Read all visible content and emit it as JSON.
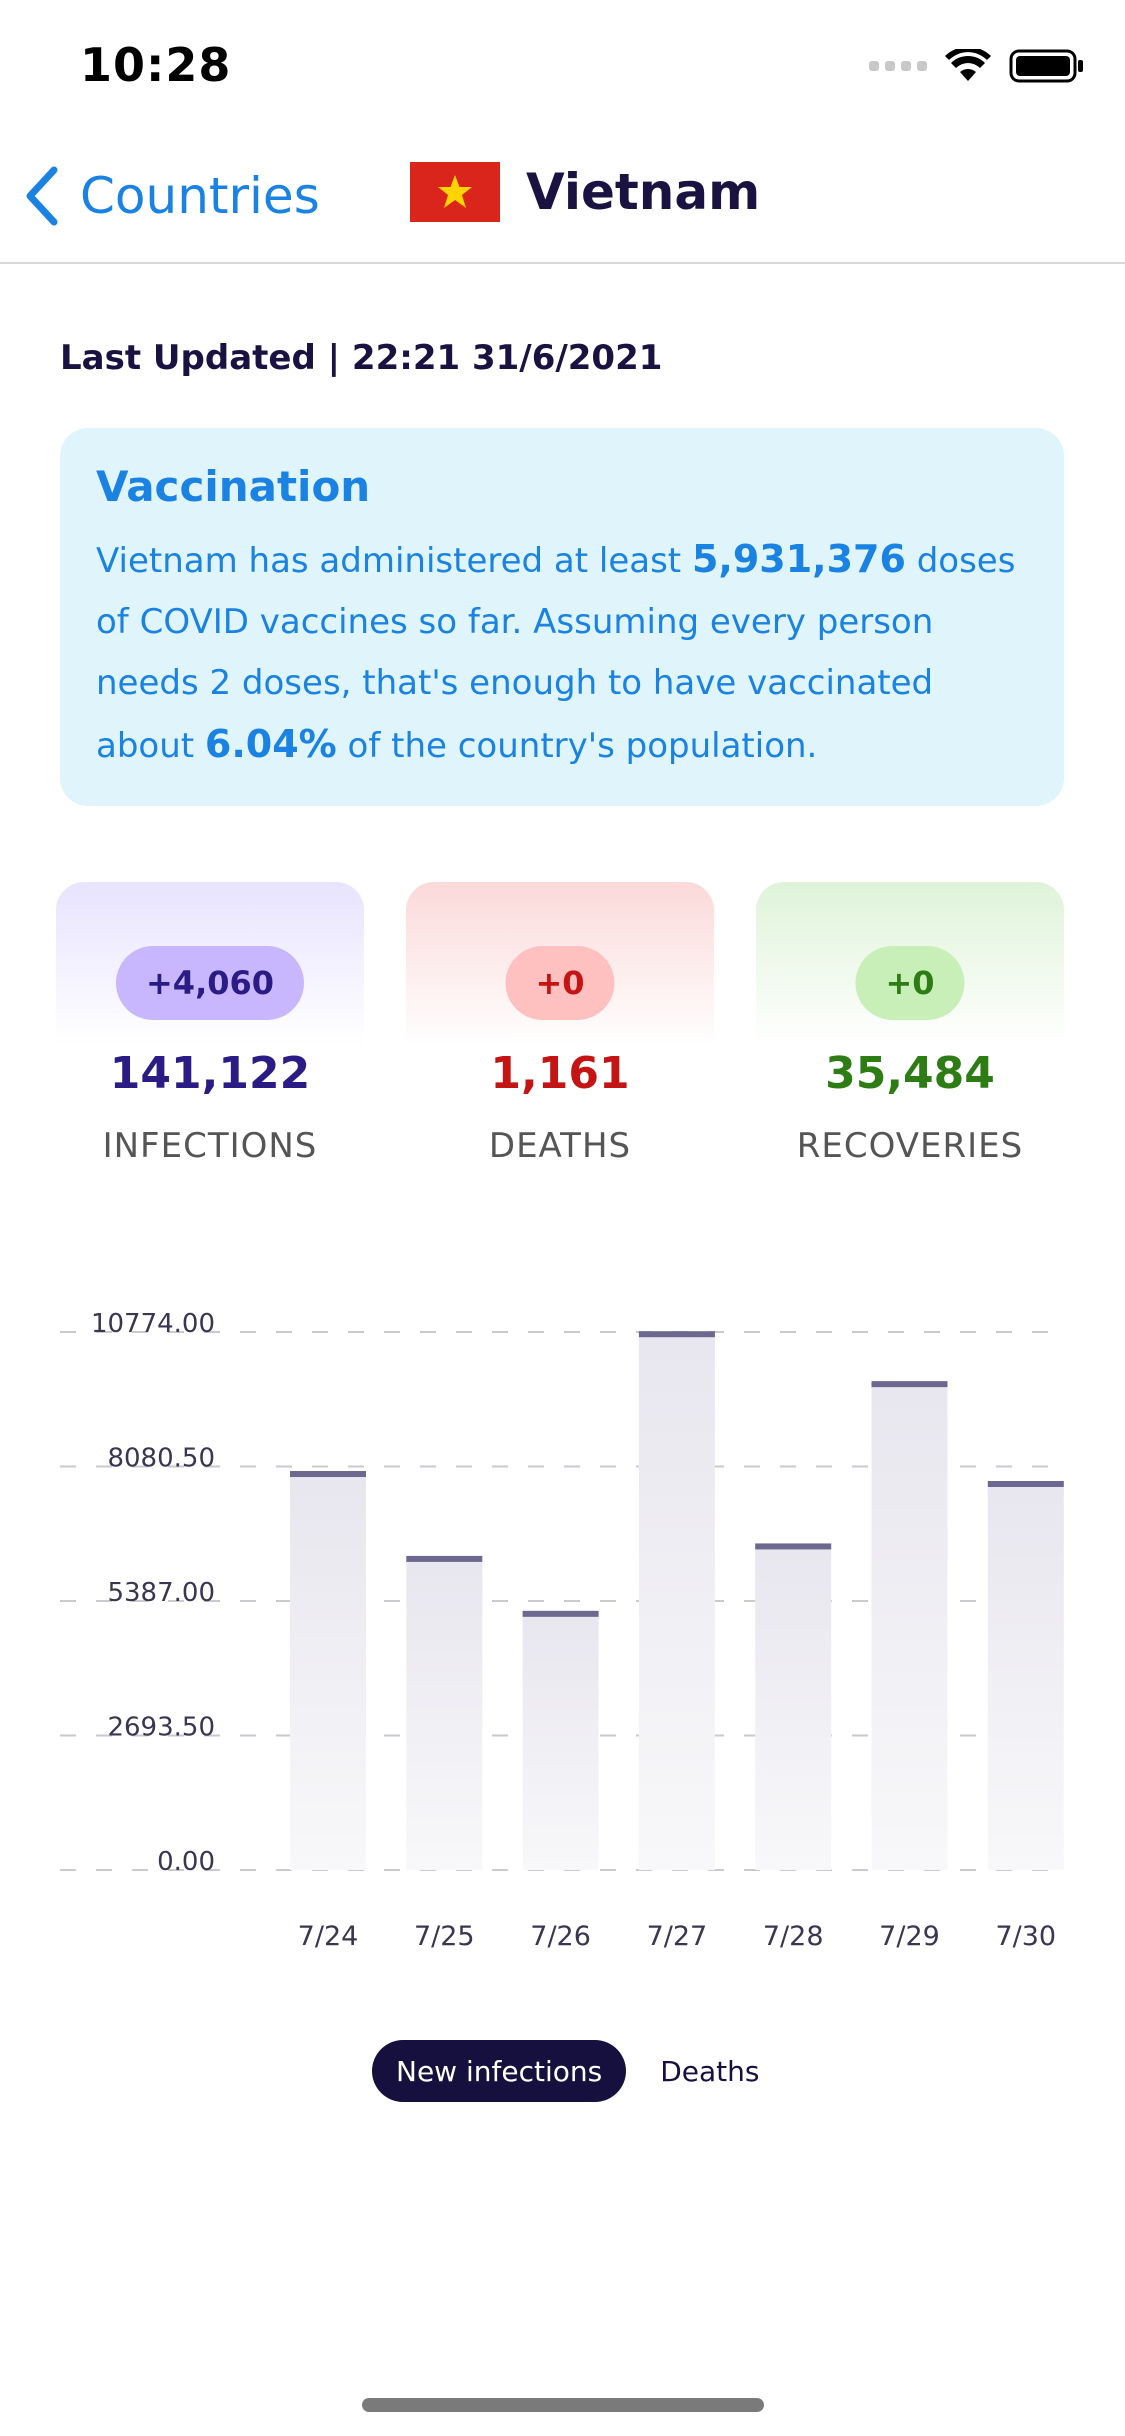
{
  "status_bar": {
    "time": "10:28"
  },
  "nav": {
    "back_label": "Countries",
    "title": "Vietnam",
    "accent": "#1a82e2"
  },
  "last_updated": "Last Updated | 22:21 31/6/2021",
  "vaccination": {
    "title": "Vaccination",
    "text_1": "Vietnam has administered at least ",
    "doses": "5,931,376",
    "text_2": " doses of COVID vaccines so far. Assuming every person needs 2 doses, that's enough to have vaccinated about ",
    "percent": "6.04%",
    "text_3": " of the country's population."
  },
  "stats": {
    "infections": {
      "badge": "+4,060",
      "value": "141,122",
      "label": "INFECTIONS",
      "color": "#2b1b84"
    },
    "deaths": {
      "badge": "+0",
      "value": "1,161",
      "label": "DEATHS",
      "color": "#c41414"
    },
    "recoveries": {
      "badge": "+0",
      "value": "35,484",
      "label": "RECOVERIES",
      "color": "#2d7d14"
    }
  },
  "chart_data": {
    "type": "bar",
    "categories": [
      "7/24",
      "7/25",
      "7/26",
      "7/27",
      "7/28",
      "7/29",
      "7/30"
    ],
    "values": [
      7950,
      6250,
      5150,
      10750,
      6500,
      9750,
      7750
    ],
    "y_ticks": [
      "10774.00",
      "8080.50",
      "5387.00",
      "2693.50",
      "0.00"
    ],
    "ylim": [
      0,
      10774
    ],
    "grid": true,
    "bar_color": "#6c6890"
  },
  "toggle": {
    "active": "New infections",
    "inactive": "Deaths"
  }
}
